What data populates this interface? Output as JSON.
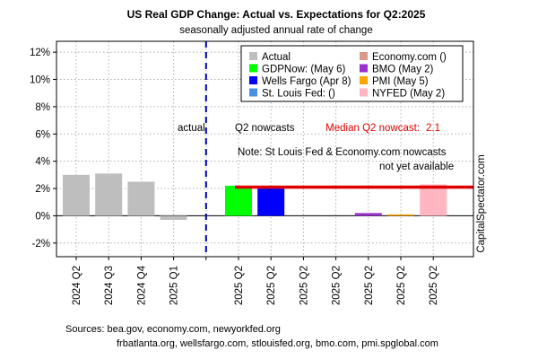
{
  "chart_data": {
    "type": "bar",
    "title": "US Real GDP Change: Actual vs. Expectations for Q2:2025",
    "subtitle": "seasonally adjusted annual rate of change",
    "categories": [
      "2024 Q2",
      "2024 Q3",
      "2024 Q4",
      "2025 Q1",
      "",
      "2025 Q2",
      "2025 Q2",
      "2025 Q2",
      "2025 Q2",
      "2025 Q2",
      "2025 Q2",
      "2025 Q2"
    ],
    "series": [
      {
        "name": "Actual",
        "color": "#bebebe",
        "values": [
          3.0,
          3.1,
          2.5,
          -0.3,
          null,
          null,
          null,
          null,
          null,
          null,
          null,
          null
        ]
      },
      {
        "name": "GDPNow: (May 6)",
        "color": "#00ff00",
        "values": [
          null,
          null,
          null,
          null,
          null,
          2.2,
          null,
          null,
          null,
          null,
          null,
          null
        ]
      },
      {
        "name": "Wells Fargo (Apr 8)",
        "color": "#0000ff",
        "values": [
          null,
          null,
          null,
          null,
          null,
          null,
          2.0,
          null,
          null,
          null,
          null,
          null
        ]
      },
      {
        "name": "St. Louis Fed: ()",
        "color": "#4a90e2",
        "values": [
          null,
          null,
          null,
          null,
          null,
          null,
          null,
          null,
          null,
          null,
          null,
          null
        ]
      },
      {
        "name": "Economy.com ()",
        "color": "#d99a8a",
        "values": [
          null,
          null,
          null,
          null,
          null,
          null,
          null,
          null,
          null,
          null,
          null,
          null
        ]
      },
      {
        "name": "BMO (May 2)",
        "color": "#9932cc",
        "values": [
          null,
          null,
          null,
          null,
          null,
          null,
          null,
          null,
          null,
          0.2,
          null,
          null
        ]
      },
      {
        "name": "PMI (May 5)",
        "color": "#ffa500",
        "values": [
          null,
          null,
          null,
          null,
          null,
          null,
          null,
          null,
          null,
          null,
          0.1,
          null
        ]
      },
      {
        "name": "NYFED (May 2)",
        "color": "#ffb6c1",
        "values": [
          null,
          null,
          null,
          null,
          null,
          null,
          null,
          null,
          null,
          null,
          null,
          2.3
        ]
      }
    ],
    "median_nowcast": {
      "value": 2.1,
      "label": "Median Q2 nowcast:",
      "value_label": "2.1",
      "color": "#e00000"
    },
    "divider_after_index": 4,
    "ylim": [
      -3,
      12.8
    ],
    "yticks": [
      -2,
      0,
      2,
      4,
      6,
      8,
      10,
      12
    ],
    "ytick_labels": [
      "-2%",
      "0%",
      "2%",
      "4%",
      "6%",
      "8%",
      "10%",
      "12%"
    ],
    "grid": true,
    "legend_position": "top-right",
    "xlabel": "",
    "ylabel": ""
  },
  "annotations": {
    "actual_label": "actual",
    "nowcast_label": "Q2 nowcasts",
    "note_line1": "Note: St Louis Fed & Economy.com nowcasts",
    "note_line2": "not yet available",
    "watermark": "CapitalSpectator.com"
  },
  "sources": {
    "line1": "Sources: bea.gov, economy.com, newyorkfed.org",
    "line2": "frbatlanta.org, wellsfargo.com, stlouisfed.org, bmo.com, pmi.spglobal.com"
  }
}
